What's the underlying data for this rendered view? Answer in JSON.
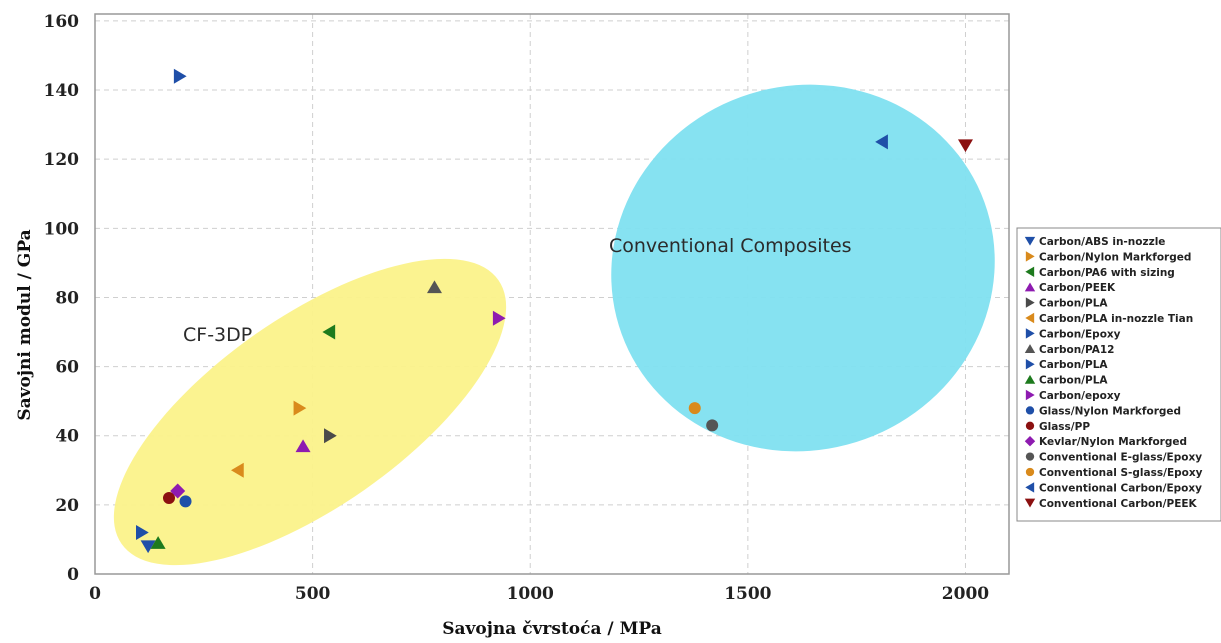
{
  "chart_data": {
    "type": "scatter",
    "title": "",
    "xlabel": "Savojna čvrstoća / MPa",
    "ylabel": "Savojni modul / GPa",
    "xlim": [
      0,
      2100
    ],
    "ylim": [
      0,
      162
    ],
    "xticks": [
      0,
      500,
      1000,
      1500,
      2000
    ],
    "yticks": [
      0,
      20,
      40,
      60,
      80,
      100,
      120,
      140,
      160
    ],
    "grid": true,
    "legend_position": "right",
    "annotations": [
      {
        "text": "CF-3DP",
        "region_color": "#fbf28a"
      },
      {
        "text": "Conventional Composites",
        "region_color": "#7fe0f0"
      }
    ],
    "series": [
      {
        "name": "Carbon/ABS in-nozzle",
        "marker": "tri-down",
        "color": "#1f4fa8",
        "points": [
          [
            122,
            8
          ]
        ]
      },
      {
        "name": "Carbon/Nylon Markforged",
        "marker": "tri-right",
        "color": "#d98a1c",
        "points": [
          [
            470,
            48
          ]
        ]
      },
      {
        "name": "Carbon/PA6 with sizing",
        "marker": "tri-left",
        "color": "#1d7a1d",
        "points": [
          [
            538,
            70
          ]
        ]
      },
      {
        "name": "Carbon/PEEK",
        "marker": "tri-up",
        "color": "#8e1bb0",
        "points": [
          [
            478,
            37
          ]
        ]
      },
      {
        "name": "Carbon/PLA",
        "marker": "tri-right",
        "color": "#4a4a4a",
        "points": [
          [
            540,
            40
          ]
        ]
      },
      {
        "name": "Carbon/PLA in-nozzle Tian",
        "marker": "tri-left",
        "color": "#d98a1c",
        "points": [
          [
            328,
            30
          ]
        ]
      },
      {
        "name": "Carbon/Epoxy",
        "marker": "tri-right",
        "color": "#1f4fa8",
        "points": [
          [
            195,
            144
          ]
        ]
      },
      {
        "name": "Carbon/PA12",
        "marker": "tri-up",
        "color": "#555555",
        "points": [
          [
            780,
            83
          ]
        ]
      },
      {
        "name": "Carbon/PLA",
        "marker": "tri-right",
        "color": "#1f4fa8",
        "points": [
          [
            108,
            12
          ]
        ]
      },
      {
        "name": "Carbon/PLA",
        "marker": "tri-up",
        "color": "#1d7a1d",
        "points": [
          [
            145,
            9
          ]
        ]
      },
      {
        "name": "Carbon/epoxy",
        "marker": "tri-right",
        "color": "#8e1bb0",
        "points": [
          [
            928,
            74
          ]
        ]
      },
      {
        "name": "Glass/Nylon Markforged",
        "marker": "circle",
        "color": "#1f4fa8",
        "points": [
          [
            208,
            21
          ]
        ]
      },
      {
        "name": "Glass/PP",
        "marker": "circle",
        "color": "#8b1010",
        "points": [
          [
            170,
            22
          ]
        ]
      },
      {
        "name": "Kevlar/Nylon Markforged",
        "marker": "diamond",
        "color": "#8e1bb0",
        "points": [
          [
            190,
            24
          ]
        ]
      },
      {
        "name": "Conventional E-glass/Epoxy",
        "marker": "circle",
        "color": "#555555",
        "points": [
          [
            1418,
            43
          ]
        ]
      },
      {
        "name": "Conventional S-glass/Epoxy",
        "marker": "circle",
        "color": "#d98a1c",
        "points": [
          [
            1378,
            48
          ]
        ]
      },
      {
        "name": "Conventional Carbon/Epoxy",
        "marker": "tri-left",
        "color": "#1f4fa8",
        "points": [
          [
            1808,
            125
          ]
        ]
      },
      {
        "name": "Conventional Carbon/PEEK",
        "marker": "tri-down",
        "color": "#8b1010",
        "points": [
          [
            2000,
            124
          ]
        ]
      }
    ]
  }
}
